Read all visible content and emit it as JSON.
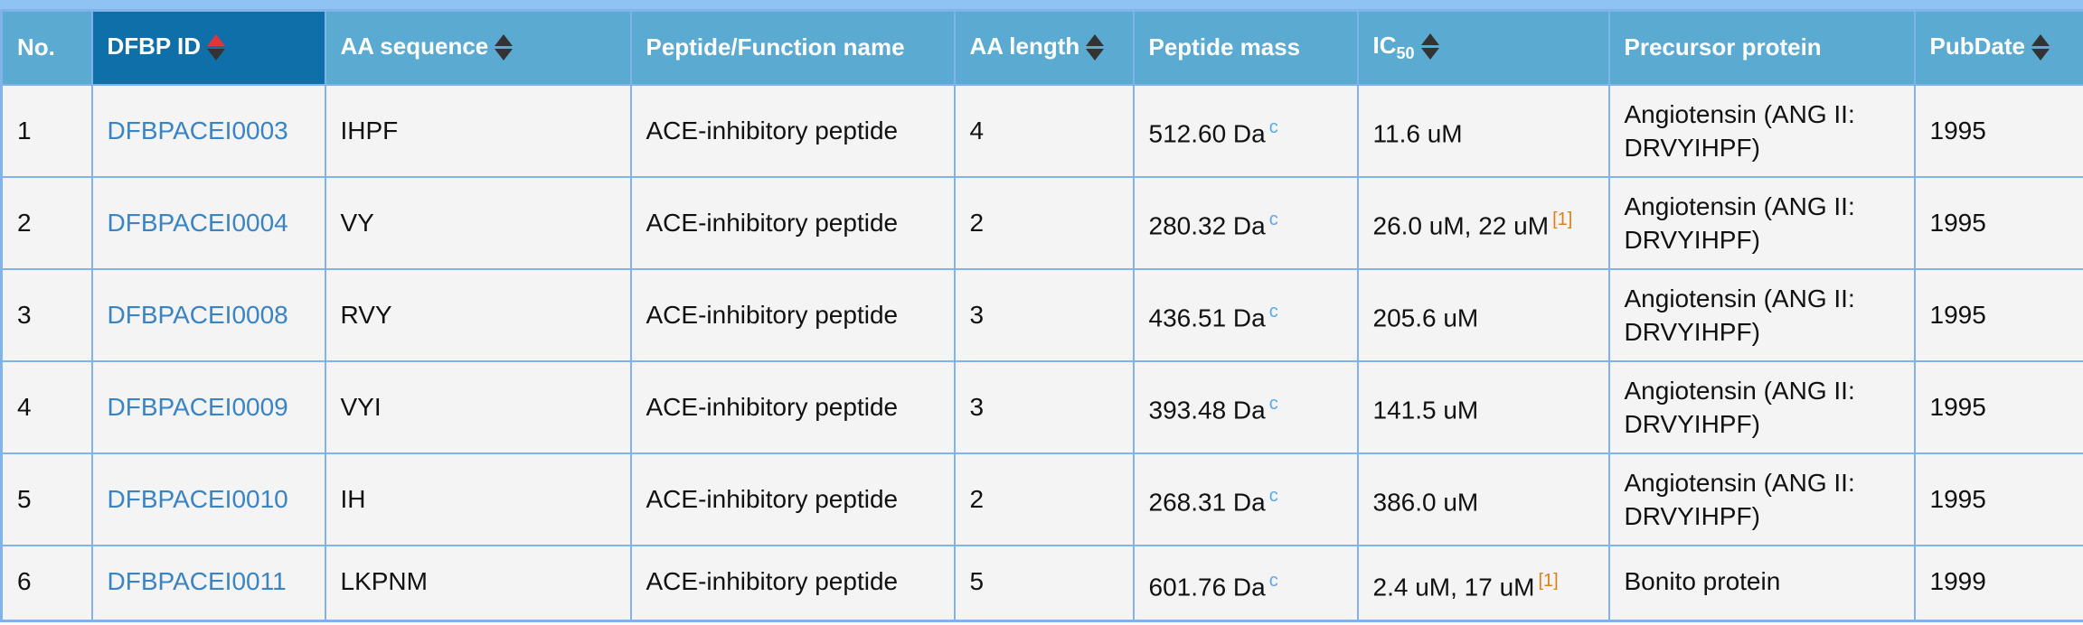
{
  "table": {
    "headers": {
      "no": "No.",
      "id": "DFBP ID",
      "aa_seq": "AA sequence",
      "name": "Peptide/Function name",
      "aa_len": "AA length",
      "mass": "Peptide mass",
      "ic_main": "IC",
      "ic_sub": "50",
      "precursor": "Precursor protein",
      "pubdate": "PubDate"
    },
    "sort": {
      "active_column": "DFBP ID",
      "direction": "ascending"
    },
    "colors": {
      "header_bg": "#5aaad1",
      "active_header_bg": "#0f6fa8",
      "border": "#7fb3ea",
      "link": "#3a84c3",
      "ref": "#e07f1a",
      "sort_active": "#e0353a"
    },
    "rows": [
      {
        "no": "1",
        "id": "DFBPACEI0003",
        "seq": "IHPF",
        "name": "ACE-inhibitory peptide",
        "len": "4",
        "mass": "512.60 Da",
        "mass_note": "c",
        "ic50": "11.6 uM",
        "ref": "",
        "precursor": "Angiotensin (ANG II: DRVYIHPF)",
        "pubdate": "1995"
      },
      {
        "no": "2",
        "id": "DFBPACEI0004",
        "seq": "VY",
        "name": "ACE-inhibitory peptide",
        "len": "2",
        "mass": "280.32 Da",
        "mass_note": "c",
        "ic50": "26.0 uM, 22 uM",
        "ref": "[1]",
        "precursor": "Angiotensin (ANG II: DRVYIHPF)",
        "pubdate": "1995"
      },
      {
        "no": "3",
        "id": "DFBPACEI0008",
        "seq": "RVY",
        "name": "ACE-inhibitory peptide",
        "len": "3",
        "mass": "436.51 Da",
        "mass_note": "c",
        "ic50": "205.6 uM",
        "ref": "",
        "precursor": "Angiotensin (ANG II: DRVYIHPF)",
        "pubdate": "1995"
      },
      {
        "no": "4",
        "id": "DFBPACEI0009",
        "seq": "VYI",
        "name": "ACE-inhibitory peptide",
        "len": "3",
        "mass": "393.48 Da",
        "mass_note": "c",
        "ic50": "141.5 uM",
        "ref": "",
        "precursor": "Angiotensin (ANG II: DRVYIHPF)",
        "pubdate": "1995"
      },
      {
        "no": "5",
        "id": "DFBPACEI0010",
        "seq": "IH",
        "name": "ACE-inhibitory peptide",
        "len": "2",
        "mass": "268.31 Da",
        "mass_note": "c",
        "ic50": "386.0 uM",
        "ref": "",
        "precursor": "Angiotensin (ANG II: DRVYIHPF)",
        "pubdate": "1995"
      },
      {
        "no": "6",
        "id": "DFBPACEI0011",
        "seq": "LKPNM",
        "name": "ACE-inhibitory peptide",
        "len": "5",
        "mass": "601.76 Da",
        "mass_note": "c",
        "ic50": "2.4 uM, 17 uM",
        "ref": "[1]",
        "precursor": "Bonito protein",
        "pubdate": "1999"
      }
    ]
  }
}
